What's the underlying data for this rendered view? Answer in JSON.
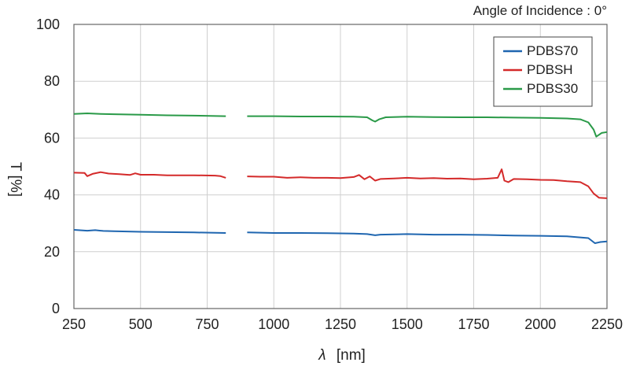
{
  "chart_data": {
    "type": "line",
    "annotation": "Angle of Incidence : 0°",
    "xlabel_symbol": "λ",
    "xlabel_unit": "[nm]",
    "ylabel": "T [%]",
    "xlim": [
      250,
      2250
    ],
    "ylim": [
      0,
      100
    ],
    "x_ticks": [
      250,
      500,
      750,
      1000,
      1250,
      1500,
      1750,
      2000,
      2250
    ],
    "y_ticks": [
      0,
      20,
      40,
      60,
      80,
      100
    ],
    "grid": true,
    "legend_position": "top-right",
    "series": [
      {
        "name": "PDBS70",
        "color": "#1f66b0",
        "segments": [
          [
            [
              250,
              27.7
            ],
            [
              300,
              27.4
            ],
            [
              330,
              27.6
            ],
            [
              360,
              27.3
            ],
            [
              400,
              27.2
            ],
            [
              500,
              27.0
            ],
            [
              600,
              26.9
            ],
            [
              700,
              26.8
            ],
            [
              820,
              26.6
            ]
          ],
          [
            [
              900,
              26.8
            ],
            [
              1000,
              26.6
            ],
            [
              1100,
              26.6
            ],
            [
              1200,
              26.5
            ],
            [
              1300,
              26.4
            ],
            [
              1350,
              26.2
            ],
            [
              1380,
              25.8
            ],
            [
              1400,
              26.0
            ],
            [
              1500,
              26.2
            ],
            [
              1600,
              26.0
            ],
            [
              1700,
              26.0
            ],
            [
              1800,
              25.9
            ],
            [
              1900,
              25.7
            ],
            [
              2000,
              25.6
            ],
            [
              2100,
              25.4
            ],
            [
              2180,
              24.8
            ],
            [
              2205,
              23.0
            ],
            [
              2225,
              23.4
            ],
            [
              2250,
              23.6
            ]
          ]
        ]
      },
      {
        "name": "PDBSH",
        "color": "#d42a2a",
        "segments": [
          [
            [
              250,
              47.8
            ],
            [
              290,
              47.7
            ],
            [
              300,
              46.6
            ],
            [
              320,
              47.4
            ],
            [
              350,
              48.0
            ],
            [
              380,
              47.5
            ],
            [
              420,
              47.3
            ],
            [
              460,
              47.0
            ],
            [
              480,
              47.6
            ],
            [
              500,
              47.1
            ],
            [
              550,
              47.1
            ],
            [
              600,
              46.9
            ],
            [
              700,
              46.9
            ],
            [
              780,
              46.8
            ],
            [
              800,
              46.6
            ],
            [
              820,
              46.0
            ]
          ],
          [
            [
              900,
              46.5
            ],
            [
              950,
              46.4
            ],
            [
              1000,
              46.4
            ],
            [
              1050,
              46.0
            ],
            [
              1100,
              46.2
            ],
            [
              1150,
              46.0
            ],
            [
              1200,
              46.0
            ],
            [
              1250,
              45.9
            ],
            [
              1300,
              46.3
            ],
            [
              1320,
              47.0
            ],
            [
              1340,
              45.5
            ],
            [
              1360,
              46.5
            ],
            [
              1380,
              45.0
            ],
            [
              1400,
              45.6
            ],
            [
              1450,
              45.8
            ],
            [
              1500,
              46.0
            ],
            [
              1550,
              45.8
            ],
            [
              1600,
              45.9
            ],
            [
              1650,
              45.7
            ],
            [
              1700,
              45.8
            ],
            [
              1750,
              45.5
            ],
            [
              1800,
              45.7
            ],
            [
              1840,
              46.0
            ],
            [
              1855,
              49.0
            ],
            [
              1865,
              45.0
            ],
            [
              1880,
              44.5
            ],
            [
              1900,
              45.6
            ],
            [
              1950,
              45.5
            ],
            [
              2000,
              45.3
            ],
            [
              2050,
              45.2
            ],
            [
              2100,
              44.8
            ],
            [
              2150,
              44.5
            ],
            [
              2180,
              43.0
            ],
            [
              2200,
              40.5
            ],
            [
              2220,
              39.0
            ],
            [
              2250,
              38.8
            ]
          ]
        ]
      },
      {
        "name": "PDBS30",
        "color": "#2a9a48",
        "segments": [
          [
            [
              250,
              68.5
            ],
            [
              300,
              68.7
            ],
            [
              350,
              68.5
            ],
            [
              400,
              68.4
            ],
            [
              500,
              68.2
            ],
            [
              600,
              68.0
            ],
            [
              700,
              67.9
            ],
            [
              820,
              67.7
            ]
          ],
          [
            [
              900,
              67.7
            ],
            [
              1000,
              67.7
            ],
            [
              1100,
              67.6
            ],
            [
              1200,
              67.6
            ],
            [
              1300,
              67.5
            ],
            [
              1350,
              67.3
            ],
            [
              1370,
              66.2
            ],
            [
              1380,
              65.8
            ],
            [
              1395,
              66.6
            ],
            [
              1420,
              67.3
            ],
            [
              1500,
              67.5
            ],
            [
              1600,
              67.4
            ],
            [
              1700,
              67.3
            ],
            [
              1800,
              67.3
            ],
            [
              1900,
              67.2
            ],
            [
              2000,
              67.1
            ],
            [
              2100,
              66.9
            ],
            [
              2150,
              66.6
            ],
            [
              2180,
              65.5
            ],
            [
              2200,
              63.0
            ],
            [
              2210,
              60.5
            ],
            [
              2230,
              61.8
            ],
            [
              2250,
              62.1
            ]
          ]
        ]
      }
    ]
  }
}
